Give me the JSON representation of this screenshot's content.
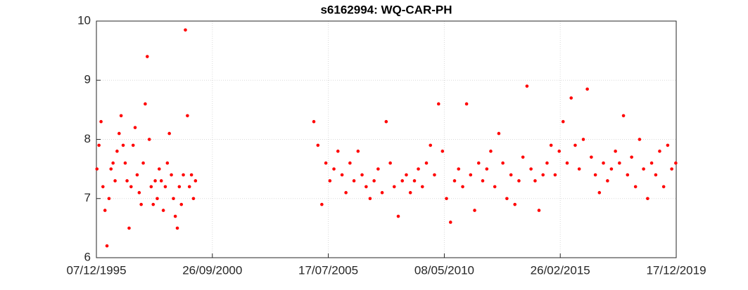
{
  "chart_data": {
    "type": "scatter",
    "title": "s6162994: WQ-CAR-PH",
    "color": "#ff0000",
    "grid": true,
    "xlim": [
      "07/12/1995",
      "17/12/2019"
    ],
    "xticks": [
      "07/12/1995",
      "26/09/2000",
      "17/07/2005",
      "08/05/2010",
      "26/02/2015",
      "17/12/2019"
    ],
    "ylim": [
      6,
      10
    ],
    "yticks": [
      6,
      7,
      8,
      9,
      10
    ],
    "x": [
      "15/12/1995",
      "15/01/1996",
      "15/02/1996",
      "15/03/1996",
      "15/04/1996",
      "15/05/1996",
      "15/06/1996",
      "15/07/1996",
      "15/08/1996",
      "15/09/1996",
      "15/10/1996",
      "15/11/1996",
      "15/12/1996",
      "15/01/1997",
      "15/02/1997",
      "15/03/1997",
      "15/04/1997",
      "15/05/1997",
      "15/06/1997",
      "15/07/1997",
      "15/08/1997",
      "15/09/1997",
      "15/10/1997",
      "15/11/1997",
      "15/12/1997",
      "15/01/1998",
      "15/02/1998",
      "15/03/1998",
      "15/04/1998",
      "15/05/1998",
      "15/06/1998",
      "15/07/1998",
      "15/08/1998",
      "15/09/1998",
      "15/10/1998",
      "15/11/1998",
      "15/12/1998",
      "15/01/1999",
      "15/02/1999",
      "15/03/1999",
      "15/04/1999",
      "15/05/1999",
      "15/06/1999",
      "15/07/1999",
      "15/08/1999",
      "15/09/1999",
      "15/10/1999",
      "15/11/1999",
      "15/12/1999",
      "15/01/2000",
      "10/12/2004",
      "10/02/2005",
      "10/04/2005",
      "10/06/2005",
      "10/08/2005",
      "10/10/2005",
      "10/12/2005",
      "10/02/2006",
      "10/04/2006",
      "10/06/2006",
      "10/08/2006",
      "10/10/2006",
      "10/12/2006",
      "10/02/2007",
      "10/04/2007",
      "10/06/2007",
      "10/08/2007",
      "10/10/2007",
      "10/12/2007",
      "10/02/2008",
      "10/04/2008",
      "10/06/2008",
      "10/08/2008",
      "10/10/2008",
      "10/12/2008",
      "10/02/2009",
      "10/04/2009",
      "10/06/2009",
      "10/08/2009",
      "10/10/2009",
      "10/12/2009",
      "10/02/2010",
      "10/04/2010",
      "10/06/2010",
      "10/08/2010",
      "10/10/2010",
      "10/12/2010",
      "10/02/2011",
      "10/04/2011",
      "10/06/2011",
      "10/08/2011",
      "10/10/2011",
      "10/12/2011",
      "10/02/2012",
      "10/04/2012",
      "10/06/2012",
      "10/08/2012",
      "10/10/2012",
      "10/12/2012",
      "10/02/2013",
      "10/04/2013",
      "10/06/2013",
      "10/08/2013",
      "10/10/2013",
      "10/12/2013",
      "10/02/2014",
      "10/04/2014",
      "10/06/2014",
      "10/08/2014",
      "10/10/2014",
      "10/12/2014",
      "10/02/2015",
      "10/04/2015",
      "10/06/2015",
      "10/08/2015",
      "10/10/2015",
      "10/12/2015",
      "10/02/2016",
      "10/04/2016",
      "10/06/2016",
      "10/08/2016",
      "10/10/2016",
      "10/12/2016",
      "10/02/2017",
      "10/04/2017",
      "10/06/2017",
      "10/08/2017",
      "10/10/2017",
      "10/12/2017",
      "10/02/2018",
      "10/04/2018",
      "10/06/2018",
      "10/08/2018",
      "10/10/2018",
      "10/12/2018",
      "10/02/2019",
      "10/04/2019",
      "10/06/2019",
      "10/08/2019",
      "10/10/2019",
      "10/12/2019"
    ],
    "values": [
      7.5,
      7.9,
      8.3,
      7.2,
      6.8,
      6.2,
      7.0,
      7.5,
      7.6,
      7.3,
      7.8,
      8.1,
      8.4,
      7.9,
      7.6,
      7.3,
      6.5,
      7.2,
      7.9,
      8.2,
      7.4,
      7.1,
      6.9,
      7.6,
      8.6,
      9.4,
      8.0,
      7.2,
      6.9,
      7.3,
      7.0,
      7.5,
      7.3,
      6.8,
      7.2,
      7.6,
      8.1,
      7.4,
      7.0,
      6.7,
      6.5,
      7.2,
      6.9,
      7.4,
      9.85,
      8.4,
      7.2,
      7.4,
      7.0,
      7.3,
      8.3,
      7.9,
      6.9,
      7.6,
      7.3,
      7.5,
      7.8,
      7.4,
      7.1,
      7.6,
      7.3,
      7.8,
      7.4,
      7.2,
      7.0,
      7.3,
      7.5,
      7.1,
      8.3,
      7.6,
      7.2,
      6.7,
      7.3,
      7.4,
      7.1,
      7.3,
      7.5,
      7.2,
      7.6,
      7.9,
      7.4,
      8.6,
      7.8,
      7.0,
      6.6,
      7.3,
      7.5,
      7.2,
      8.6,
      7.4,
      6.8,
      7.6,
      7.3,
      7.5,
      7.8,
      7.2,
      8.1,
      7.6,
      7.0,
      7.4,
      6.9,
      7.3,
      7.7,
      8.9,
      7.5,
      7.3,
      6.8,
      7.4,
      7.6,
      7.9,
      7.4,
      7.8,
      8.3,
      7.6,
      8.7,
      7.9,
      7.5,
      8.0,
      8.85,
      7.7,
      7.4,
      7.1,
      7.6,
      7.3,
      7.5,
      7.8,
      7.6,
      8.4,
      7.4,
      7.7,
      7.2,
      8.0,
      7.5,
      7.0,
      7.6,
      7.4,
      7.8,
      7.2,
      7.9,
      7.5,
      7.6
    ]
  }
}
